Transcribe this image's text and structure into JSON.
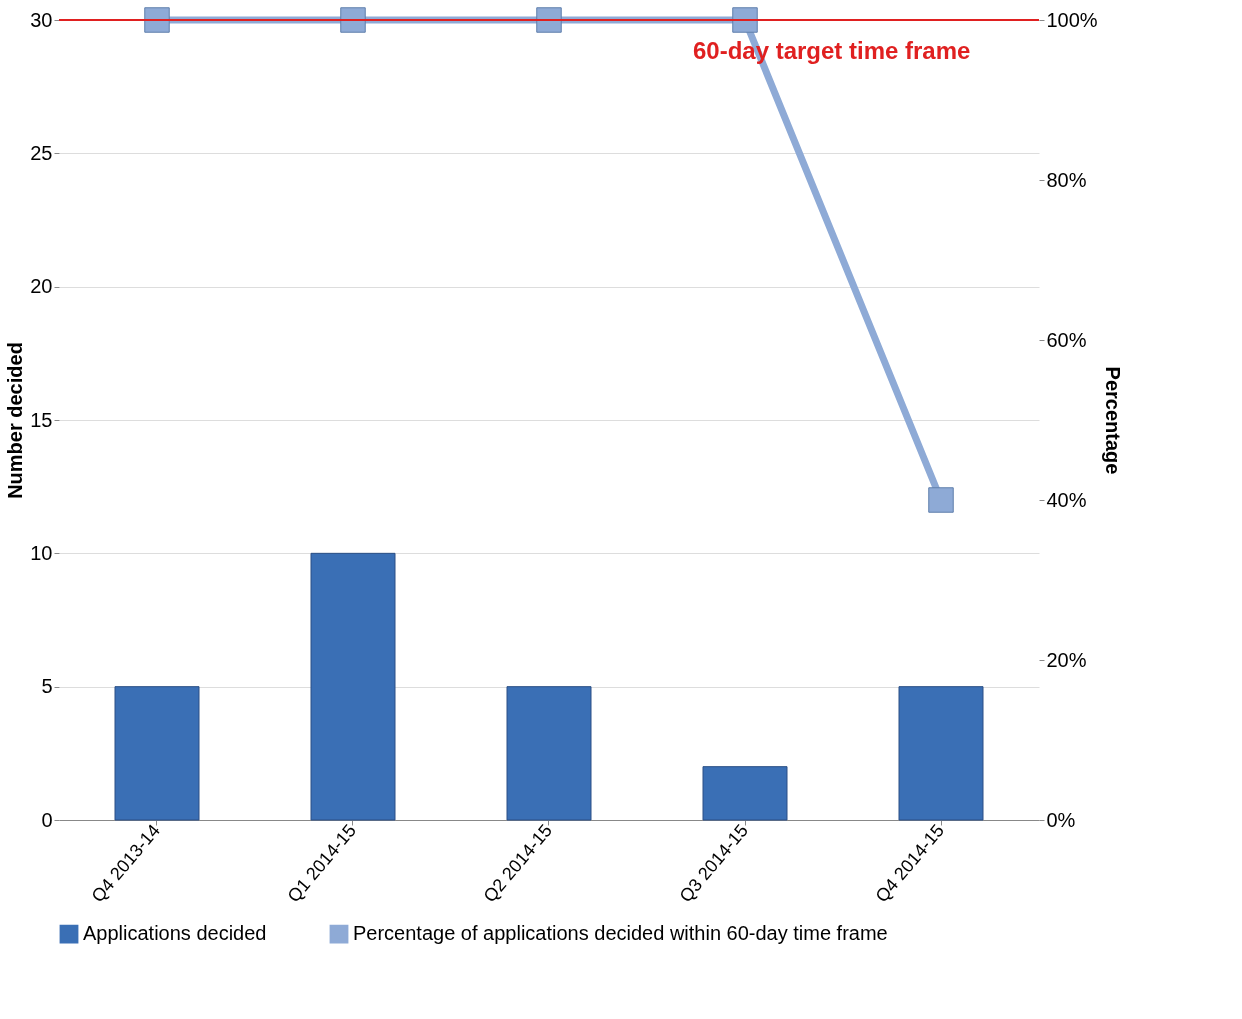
{
  "chart_data": {
    "type": "bar",
    "categories": [
      "Q4 2013-14",
      "Q1 2014-15",
      "Q2 2014-15",
      "Q3 2014-15",
      "Q4 2014-15"
    ],
    "ylabel": "Number decided",
    "y2label": "Percentage",
    "ylim": [
      0,
      30
    ],
    "yticks": [
      0,
      5,
      10,
      15,
      20,
      25,
      30
    ],
    "y2lim": [
      0,
      100
    ],
    "y2ticks": [
      {
        "value": 0,
        "label": "0%"
      },
      {
        "value": 20,
        "label": "20%"
      },
      {
        "value": 40,
        "label": "40%"
      },
      {
        "value": 60,
        "label": "60%"
      },
      {
        "value": 80,
        "label": "80%"
      },
      {
        "value": 100,
        "label": "100%"
      }
    ],
    "series": [
      {
        "name": "Applications decided",
        "color": "#3a6fb5",
        "values": [
          5,
          10,
          5,
          2,
          5
        ]
      },
      {
        "name": "Percentage of applications decided within 60-day time frame",
        "type": "line",
        "axis": "y2",
        "marker": "square",
        "color": "#8eaad6",
        "values": [
          100,
          100,
          100,
          100,
          40
        ]
      }
    ],
    "ref_lines": [
      {
        "axis": "y2",
        "value": 100,
        "label": "60-day target time frame",
        "color": "#e02020"
      }
    ],
    "grid": "y",
    "legend": "bottom"
  }
}
